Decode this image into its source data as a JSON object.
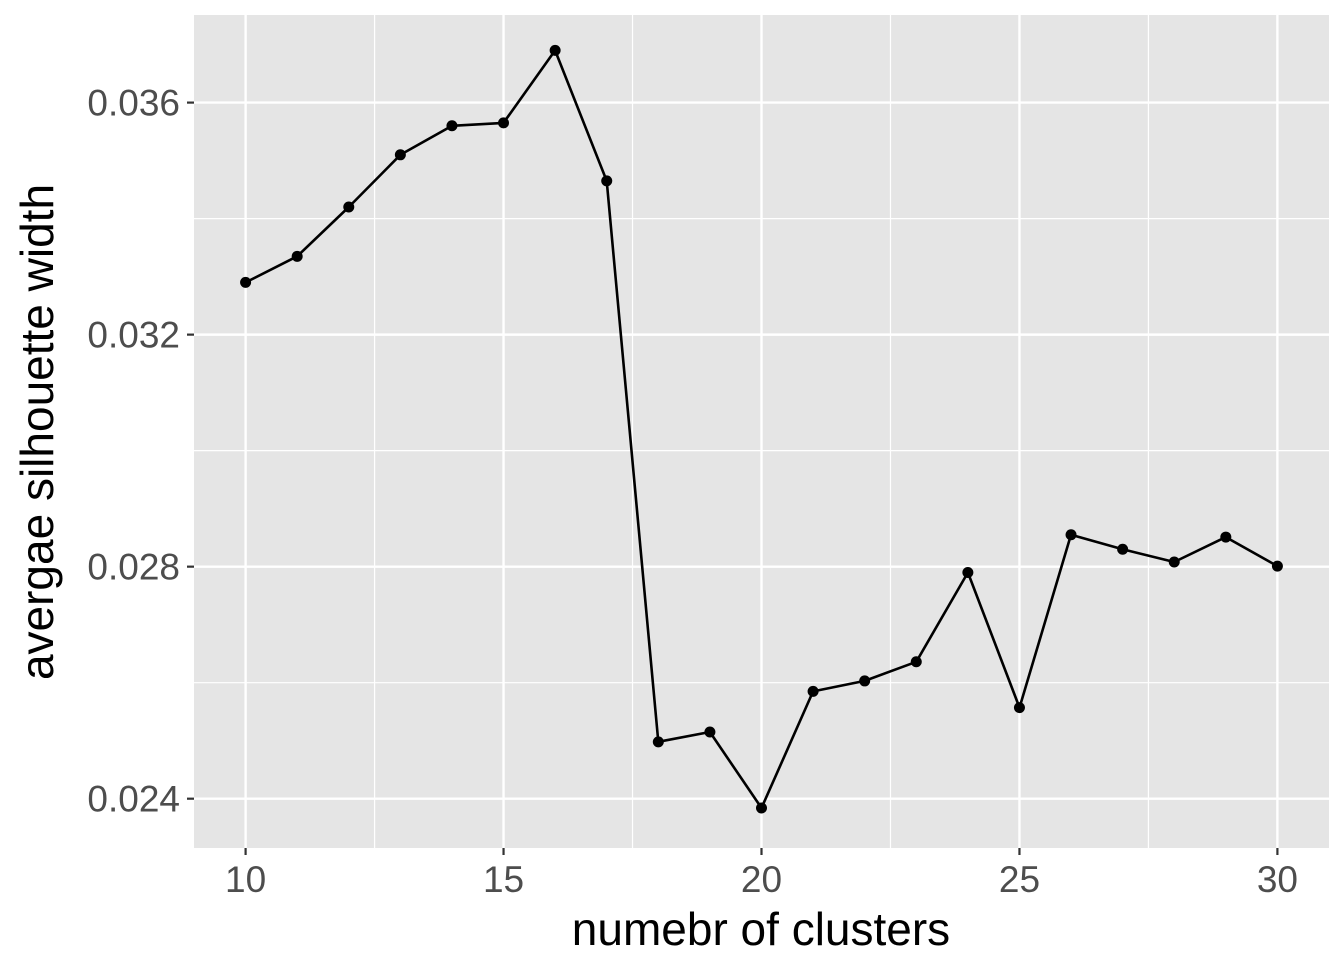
{
  "chart_data": {
    "type": "line",
    "title": "",
    "xlabel": "numebr of clusters",
    "ylabel": "avergae silhouette width",
    "x": [
      10,
      11,
      12,
      13,
      14,
      15,
      16,
      17,
      18,
      19,
      20,
      21,
      22,
      23,
      24,
      25,
      26,
      27,
      28,
      29,
      30
    ],
    "series": [
      {
        "name": "",
        "values": [
          0.0329,
          0.03335,
          0.0342,
          0.0351,
          0.0356,
          0.03565,
          0.0369,
          0.03465,
          0.02498,
          0.02515,
          0.02384,
          0.02585,
          0.02603,
          0.02636,
          0.0279,
          0.02557,
          0.02855,
          0.0283,
          0.02808,
          0.02851,
          0.02801
        ]
      }
    ],
    "xlim": [
      9,
      31
    ],
    "ylim": [
      0.02315,
      0.03751
    ],
    "x_ticks": [
      10,
      15,
      20,
      25,
      30
    ],
    "x_tick_labels": [
      "10",
      "15",
      "20",
      "25",
      "30"
    ],
    "y_ticks": [
      0.024,
      0.028,
      0.032,
      0.036
    ],
    "y_tick_labels": [
      "0.024",
      "0.028",
      "0.032",
      "0.036"
    ],
    "x_minor_ticks": [
      12.5,
      17.5,
      22.5,
      27.5
    ],
    "y_minor_ticks": [
      0.026,
      0.03,
      0.034
    ],
    "grid": true,
    "legend": "none",
    "colors": {
      "panel_background": "#e5e5e5",
      "grid": "#ffffff",
      "line": "#000000",
      "point": "#000000",
      "tick_label": "#4d4d4d",
      "axis_title": "#000000"
    }
  }
}
